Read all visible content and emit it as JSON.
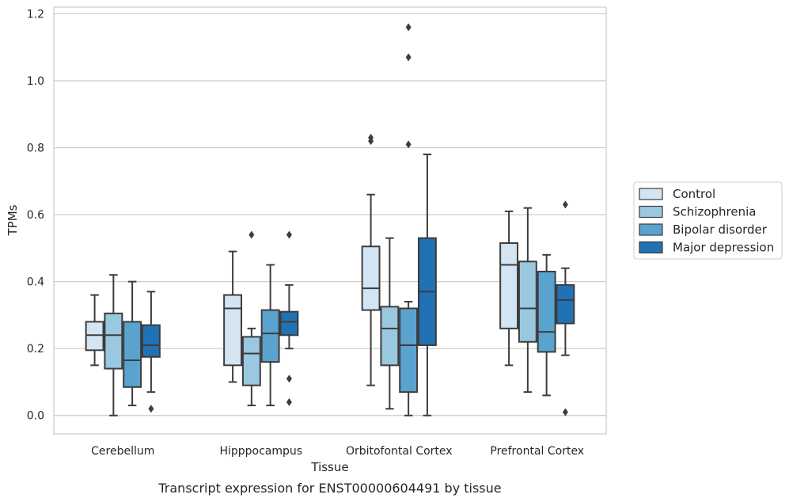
{
  "chart_data": {
    "type": "box",
    "title": "",
    "caption": "Transcript expression for ENST00000604491 by tissue",
    "xlabel": "Tissue",
    "ylabel": "TPMs",
    "ylim": [
      -0.055,
      1.22
    ],
    "yticks": [
      0.0,
      0.2,
      0.4,
      0.6,
      0.8,
      1.0,
      1.2
    ],
    "ytick_labels": [
      "0.0",
      "0.2",
      "0.4",
      "0.6",
      "0.8",
      "1.0",
      "1.2"
    ],
    "grid": "horizontal",
    "legend_position": "right",
    "categories": [
      "Cerebellum",
      "Hipppocampus",
      "Orbitofontal Cortex",
      "Prefrontal Cortex"
    ],
    "series": [
      {
        "name": "Control",
        "color": "#d3e4f3",
        "boxes": [
          {
            "whisker_low": 0.15,
            "q1": 0.195,
            "median": 0.24,
            "q3": 0.28,
            "whisker_high": 0.36,
            "outliers": []
          },
          {
            "whisker_low": 0.1,
            "q1": 0.15,
            "median": 0.32,
            "q3": 0.36,
            "whisker_high": 0.49,
            "outliers": []
          },
          {
            "whisker_low": 0.09,
            "q1": 0.315,
            "median": 0.38,
            "q3": 0.505,
            "whisker_high": 0.66,
            "outliers": [
              0.82,
              0.83
            ]
          },
          {
            "whisker_low": 0.15,
            "q1": 0.26,
            "median": 0.45,
            "q3": 0.515,
            "whisker_high": 0.61,
            "outliers": []
          }
        ]
      },
      {
        "name": "Schizophrenia",
        "color": "#9ac8e0",
        "boxes": [
          {
            "whisker_low": 0.0,
            "q1": 0.14,
            "median": 0.24,
            "q3": 0.305,
            "whisker_high": 0.42,
            "outliers": []
          },
          {
            "whisker_low": 0.03,
            "q1": 0.09,
            "median": 0.185,
            "q3": 0.235,
            "whisker_high": 0.26,
            "outliers": [
              0.54
            ]
          },
          {
            "whisker_low": 0.02,
            "q1": 0.15,
            "median": 0.26,
            "q3": 0.325,
            "whisker_high": 0.53,
            "outliers": []
          },
          {
            "whisker_low": 0.07,
            "q1": 0.22,
            "median": 0.32,
            "q3": 0.46,
            "whisker_high": 0.62,
            "outliers": []
          }
        ]
      },
      {
        "name": "Bipolar disorder",
        "color": "#5ba3cf",
        "boxes": [
          {
            "whisker_low": 0.03,
            "q1": 0.085,
            "median": 0.165,
            "q3": 0.28,
            "whisker_high": 0.4,
            "outliers": []
          },
          {
            "whisker_low": 0.03,
            "q1": 0.16,
            "median": 0.245,
            "q3": 0.315,
            "whisker_high": 0.45,
            "outliers": []
          },
          {
            "whisker_low": 0.0,
            "q1": 0.07,
            "median": 0.21,
            "q3": 0.32,
            "whisker_high": 0.34,
            "outliers": [
              0.81,
              1.07,
              1.16
            ]
          },
          {
            "whisker_low": 0.06,
            "q1": 0.19,
            "median": 0.25,
            "q3": 0.43,
            "whisker_high": 0.48,
            "outliers": []
          }
        ]
      },
      {
        "name": "Major depression",
        "color": "#2171b5",
        "boxes": [
          {
            "whisker_low": 0.07,
            "q1": 0.175,
            "median": 0.21,
            "q3": 0.27,
            "whisker_high": 0.37,
            "outliers": [
              0.02
            ]
          },
          {
            "whisker_low": 0.2,
            "q1": 0.24,
            "median": 0.28,
            "q3": 0.31,
            "whisker_high": 0.39,
            "outliers": [
              0.04,
              0.11,
              0.54
            ]
          },
          {
            "whisker_low": 0.0,
            "q1": 0.21,
            "median": 0.37,
            "q3": 0.53,
            "whisker_high": 0.78,
            "outliers": []
          },
          {
            "whisker_low": 0.18,
            "q1": 0.275,
            "median": 0.345,
            "q3": 0.39,
            "whisker_high": 0.44,
            "outliers": [
              0.01,
              0.63
            ]
          }
        ]
      }
    ]
  }
}
